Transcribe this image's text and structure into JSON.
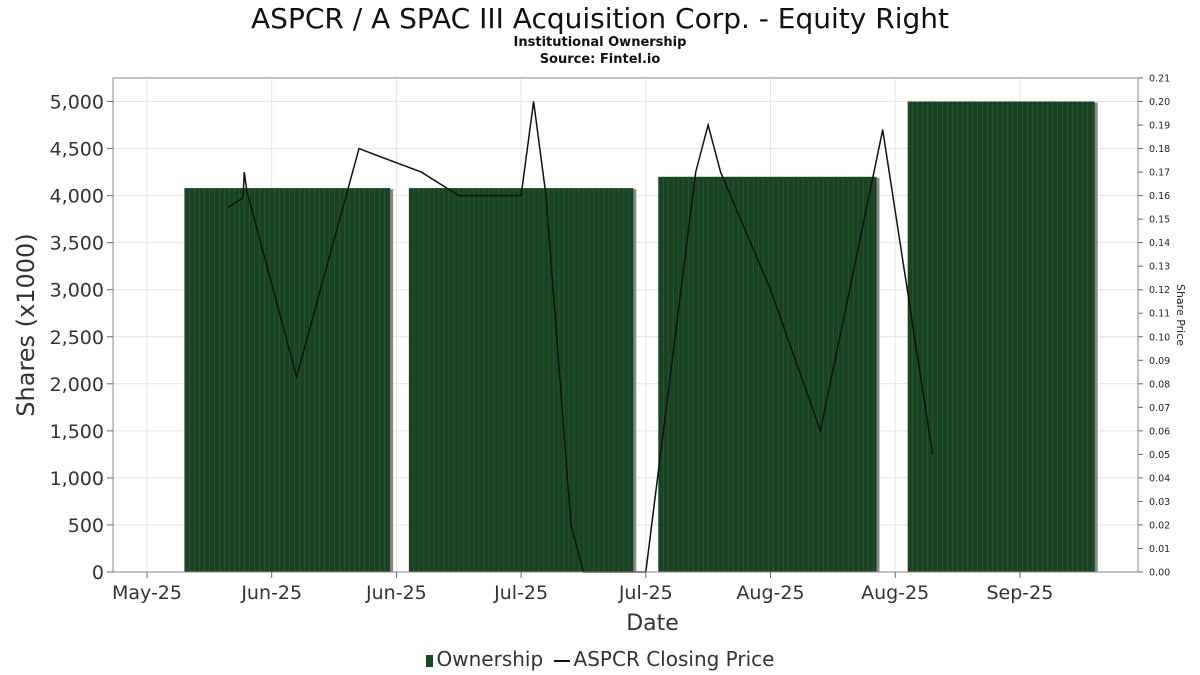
{
  "chart_data": {
    "type": "bar",
    "title": "ASPCR / A SPAC III Acquisition Corp. - Equity Right",
    "subtitle": "Institutional Ownership",
    "source": "Source: Fintel.io",
    "xlabel": "Date",
    "ylabel": "Shares (x1000)",
    "ylabel_right": "Share Price",
    "ylim": [
      0,
      5250
    ],
    "ylim_right": [
      0,
      0.21
    ],
    "y_ticks": [
      0,
      500,
      1000,
      1500,
      2000,
      2500,
      3000,
      3500,
      4000,
      4500,
      5000
    ],
    "y_tick_labels": [
      "0",
      "500",
      "1,000",
      "1,500",
      "2,000",
      "2,500",
      "3,000",
      "3,500",
      "4,000",
      "4,500",
      "5,000"
    ],
    "y_right_ticks": [
      0,
      0.01,
      0.02,
      0.03,
      0.04,
      0.05,
      0.06,
      0.07,
      0.08,
      0.09,
      0.1,
      0.11,
      0.12,
      0.13,
      0.14,
      0.15,
      0.16,
      0.17,
      0.18,
      0.19,
      0.2,
      0.21
    ],
    "y_right_tick_labels": [
      "0.00",
      "0.01",
      "0.02",
      "0.03",
      "0.04",
      "0.05",
      "0.06",
      "0.07",
      "0.08",
      "0.09",
      "0.10",
      "0.11",
      "0.12",
      "0.13",
      "0.14",
      "0.15",
      "0.16",
      "0.17",
      "0.18",
      "0.19",
      "0.20",
      "0.21"
    ],
    "x_tick_labels": [
      "May-25",
      "Jun-25",
      "Jun-25",
      "Jul-25",
      "Jul-25",
      "Aug-25",
      "Aug-25",
      "Sep-25"
    ],
    "grid": true,
    "series": [
      {
        "name": "Ownership",
        "kind": "bar",
        "color": "#1a4321",
        "bars": [
          {
            "start_tick": 0.3,
            "end_tick": 1.95,
            "value": 4080
          },
          {
            "start_tick": 2.1,
            "end_tick": 3.9,
            "value": 4080
          },
          {
            "start_tick": 4.1,
            "end_tick": 5.85,
            "value": 4200
          },
          {
            "start_tick": 6.1,
            "end_tick": 7.6,
            "value": 5000
          }
        ]
      },
      {
        "name": "ASPCR Closing Price",
        "kind": "line",
        "color": "#111111",
        "points": [
          {
            "tick": 0.65,
            "value": 0.155
          },
          {
            "tick": 0.77,
            "value": 0.159
          },
          {
            "tick": 0.78,
            "value": 0.17
          },
          {
            "tick": 0.8,
            "value": 0.162
          },
          {
            "tick": 1.2,
            "value": 0.083
          },
          {
            "tick": 1.7,
            "value": 0.18
          },
          {
            "tick": 2.2,
            "value": 0.17
          },
          {
            "tick": 2.5,
            "value": 0.16
          },
          {
            "tick": 3.0,
            "value": 0.16
          },
          {
            "tick": 3.1,
            "value": 0.2
          },
          {
            "tick": 3.2,
            "value": 0.16
          },
          {
            "tick": 3.4,
            "value": 0.02
          },
          {
            "tick": 3.5,
            "value": 0.0
          },
          {
            "tick": 4.0,
            "value": 0.0
          },
          {
            "tick": 4.4,
            "value": 0.17
          },
          {
            "tick": 4.5,
            "value": 0.19
          },
          {
            "tick": 4.6,
            "value": 0.17
          },
          {
            "tick": 5.0,
            "value": 0.12
          },
          {
            "tick": 5.4,
            "value": 0.06
          },
          {
            "tick": 5.9,
            "value": 0.188
          },
          {
            "tick": 6.3,
            "value": 0.05
          }
        ]
      }
    ],
    "legend": {
      "position": "bottom",
      "entries": [
        "Ownership",
        "ASPCR Closing Price"
      ]
    }
  }
}
